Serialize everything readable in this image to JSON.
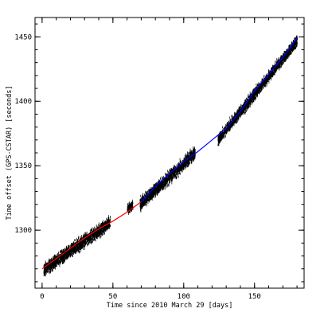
{
  "chart_data": {
    "type": "scatter",
    "title": "",
    "xlabel": "Time since 2010 March 29 [days]",
    "ylabel": "Time offset (GPS-CSTAR) [seconds]",
    "xlim": [
      -5,
      185
    ],
    "ylim": [
      1255,
      1465
    ],
    "xticks": [
      {
        "value": 0,
        "label": "0"
      },
      {
        "value": 50,
        "label": "50"
      },
      {
        "value": 100,
        "label": "100"
      },
      {
        "value": 150,
        "label": "150"
      }
    ],
    "yticks": [
      {
        "value": 1300,
        "label": "1300"
      },
      {
        "value": 1350,
        "label": "1350"
      },
      {
        "value": 1400,
        "label": "1400"
      },
      {
        "value": 1450,
        "label": "1450"
      }
    ],
    "x_minor_step": 10,
    "y_minor_step": 10,
    "grid": false,
    "legend": "none",
    "observation_segments": [
      {
        "x_range": [
          1,
          48
        ],
        "y_start": 1269,
        "y_end": 1306,
        "scatter": 14
      },
      {
        "x_range": [
          60,
          64
        ],
        "y_start": 1316,
        "y_end": 1319,
        "scatter": 10
      },
      {
        "x_range": [
          69,
          108
        ],
        "y_start": 1320,
        "y_end": 1360,
        "scatter": 14
      },
      {
        "x_range": [
          124,
          180
        ],
        "y_start": 1370,
        "y_end": 1447,
        "scatter": 12
      }
    ],
    "series": [
      {
        "color": "#ff0000",
        "x": [
          0,
          10,
          20,
          30,
          40,
          50,
          60,
          70
        ],
        "y": [
          1270,
          1278,
          1286,
          1294,
          1301,
          1307,
          1314,
          1322
        ]
      },
      {
        "color": "#0000ff",
        "x": [
          70,
          80,
          90,
          100,
          110,
          120,
          130,
          140,
          150,
          160,
          170,
          180
        ],
        "y": [
          1322,
          1334,
          1344,
          1353,
          1361,
          1370,
          1379,
          1392,
          1408,
          1421,
          1434,
          1449
        ]
      }
    ],
    "colors": {
      "points": "#000000",
      "axes": "#000000"
    }
  }
}
